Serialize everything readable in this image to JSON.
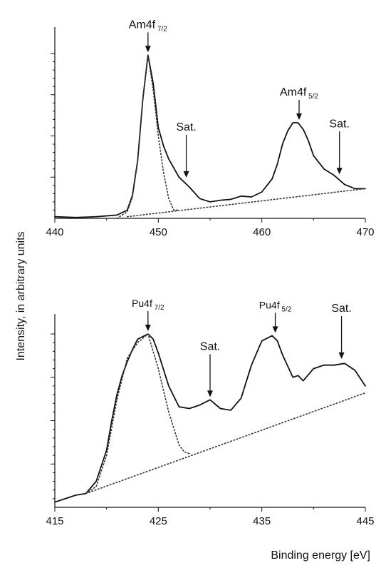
{
  "chart_data": [
    {
      "type": "line",
      "name": "Am",
      "xlabel": "",
      "x_ticks": [
        "440",
        "450",
        "460",
        "470"
      ],
      "xlim": [
        440,
        470
      ],
      "ylim": [
        0,
        1.0
      ],
      "y_ticks_major": 4,
      "y_ticks_minor": 5,
      "grid": false,
      "series": [
        {
          "style": "solid",
          "x": [
            440,
            442,
            444,
            446,
            447,
            447.5,
            448,
            448.5,
            449,
            449.5,
            450,
            450.5,
            451,
            452,
            453,
            454,
            455,
            456,
            457,
            458,
            459,
            460,
            461,
            461.5,
            462,
            462.5,
            463,
            463.5,
            464,
            464.5,
            465,
            466,
            467,
            468,
            469,
            470
          ],
          "y": [
            0.01,
            0.005,
            0.01,
            0.02,
            0.05,
            0.14,
            0.35,
            0.72,
            0.99,
            0.82,
            0.55,
            0.44,
            0.36,
            0.25,
            0.19,
            0.12,
            0.1,
            0.11,
            0.115,
            0.135,
            0.13,
            0.16,
            0.24,
            0.33,
            0.45,
            0.53,
            0.58,
            0.58,
            0.54,
            0.47,
            0.38,
            0.3,
            0.26,
            0.205,
            0.18,
            0.18
          ]
        },
        {
          "style": "dotted",
          "x": [
            446,
            447,
            447.5,
            448,
            448.5,
            449,
            449.5,
            450,
            450.5,
            451,
            451.5,
            452
          ],
          "y": [
            0.0,
            0.04,
            0.13,
            0.35,
            0.72,
            0.99,
            0.78,
            0.5,
            0.28,
            0.12,
            0.05,
            0.05
          ]
        },
        {
          "style": "dotted",
          "x": [
            447,
            470
          ],
          "y": [
            0.01,
            0.18
          ]
        }
      ],
      "annotations": [
        {
          "label": "Am4f",
          "sub": "7/2",
          "x": 449,
          "y": 0.99
        },
        {
          "label": "Sat.",
          "sub": "",
          "x": 452.7,
          "y": 0.23
        },
        {
          "label": "Am4f",
          "sub": "5/2",
          "x": 463.6,
          "y": 0.58
        },
        {
          "label": "Sat.",
          "sub": "",
          "x": 467.5,
          "y": 0.25
        }
      ]
    },
    {
      "type": "line",
      "name": "Pu",
      "xlabel": "Binding energy [eV]",
      "x_ticks": [
        "415",
        "425",
        "435",
        "445"
      ],
      "xlim": [
        415,
        445
      ],
      "ylim": [
        0,
        1.0
      ],
      "y_ticks_major": 4,
      "y_ticks_minor": 5,
      "grid": false,
      "series": [
        {
          "style": "solid",
          "x": [
            415,
            416,
            417,
            418,
            419,
            420,
            420.5,
            421,
            421.5,
            422,
            422.5,
            423,
            424,
            424.5,
            425,
            426,
            427,
            428,
            429,
            430,
            431,
            432,
            433,
            434,
            435,
            436,
            436.5,
            437,
            438,
            438.5,
            439,
            440,
            441,
            442,
            443,
            444,
            445
          ],
          "y": [
            0.03,
            0.05,
            0.07,
            0.08,
            0.15,
            0.33,
            0.5,
            0.65,
            0.76,
            0.84,
            0.91,
            0.97,
            1.0,
            0.97,
            0.89,
            0.7,
            0.58,
            0.57,
            0.59,
            0.62,
            0.57,
            0.56,
            0.63,
            0.82,
            0.96,
            0.99,
            0.96,
            0.88,
            0.75,
            0.76,
            0.73,
            0.8,
            0.82,
            0.82,
            0.83,
            0.79,
            0.7
          ]
        },
        {
          "style": "dotted",
          "x": [
            418,
            419,
            420,
            421,
            422,
            423,
            424,
            425,
            426,
            427,
            427.5,
            428
          ],
          "y": [
            0.08,
            0.12,
            0.3,
            0.62,
            0.86,
            0.95,
            1.0,
            0.8,
            0.55,
            0.36,
            0.32,
            0.31
          ]
        },
        {
          "style": "dotted",
          "x": [
            418,
            445
          ],
          "y": [
            0.08,
            0.66
          ]
        }
      ],
      "annotations": [
        {
          "label": "Pu4f",
          "sub": "7/2",
          "x": 424,
          "y": 1.0
        },
        {
          "label": "Sat.",
          "sub": "",
          "x": 430,
          "y": 0.62
        },
        {
          "label": "Pu4f",
          "sub": "5/2",
          "x": 436.3,
          "y": 0.99
        },
        {
          "label": "Sat.",
          "sub": "",
          "x": 442.7,
          "y": 0.84
        }
      ]
    }
  ],
  "ylabel": "Intensity, in arbitrary units",
  "colors": {
    "line": "#111111",
    "dotted": "#333333",
    "axis": "#111111"
  }
}
